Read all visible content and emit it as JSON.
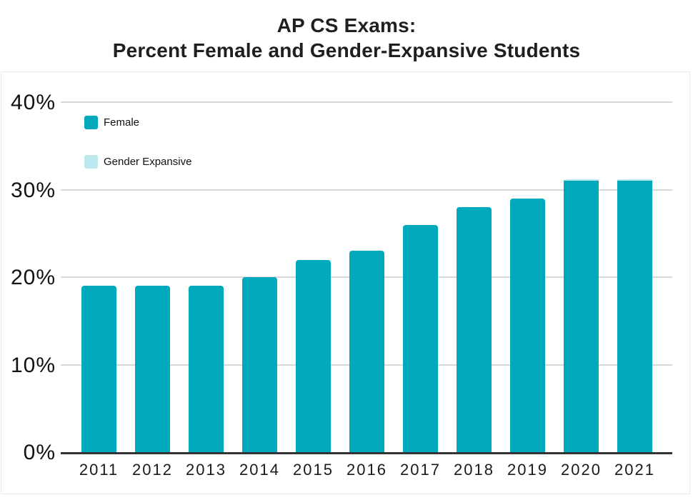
{
  "title": {
    "line1": "AP CS Exams:",
    "line2": "Percent Female and Gender-Expansive Students"
  },
  "legend": {
    "items": [
      {
        "label": "Female",
        "color": "#00a9bc"
      },
      {
        "label": "Gender Expansive",
        "color": "#bce7ec"
      }
    ]
  },
  "colors": {
    "female_bar": "#00a9bc",
    "gender_expansive_bar": "#bce7ec",
    "gridline": "#d8d8d8",
    "axis": "#333333",
    "text": "#1a1a1a"
  },
  "chart_data": {
    "type": "bar",
    "stacked": true,
    "title": "AP CS Exams: Percent Female and Gender-Expansive Students",
    "xlabel": "",
    "ylabel": "",
    "ylim": [
      0,
      40
    ],
    "grid": true,
    "legend_position": "top-left",
    "categories": [
      "2011",
      "2012",
      "2013",
      "2014",
      "2015",
      "2016",
      "2017",
      "2018",
      "2019",
      "2020",
      "2021"
    ],
    "series": [
      {
        "name": "Female",
        "color": "#00a9bc",
        "values": [
          19,
          19,
          19,
          20,
          22,
          23,
          26,
          28,
          29,
          31,
          31
        ]
      },
      {
        "name": "Gender Expansive",
        "color": "#bce7ec",
        "values": [
          0,
          0,
          0,
          0,
          0,
          0,
          0,
          0,
          0,
          0.2,
          0.2
        ]
      }
    ],
    "yticks": [
      {
        "value": 0,
        "label": "0%"
      },
      {
        "value": 10,
        "label": "10%"
      },
      {
        "value": 20,
        "label": "20%"
      },
      {
        "value": 30,
        "label": "30%"
      },
      {
        "value": 40,
        "label": "40%"
      }
    ]
  }
}
